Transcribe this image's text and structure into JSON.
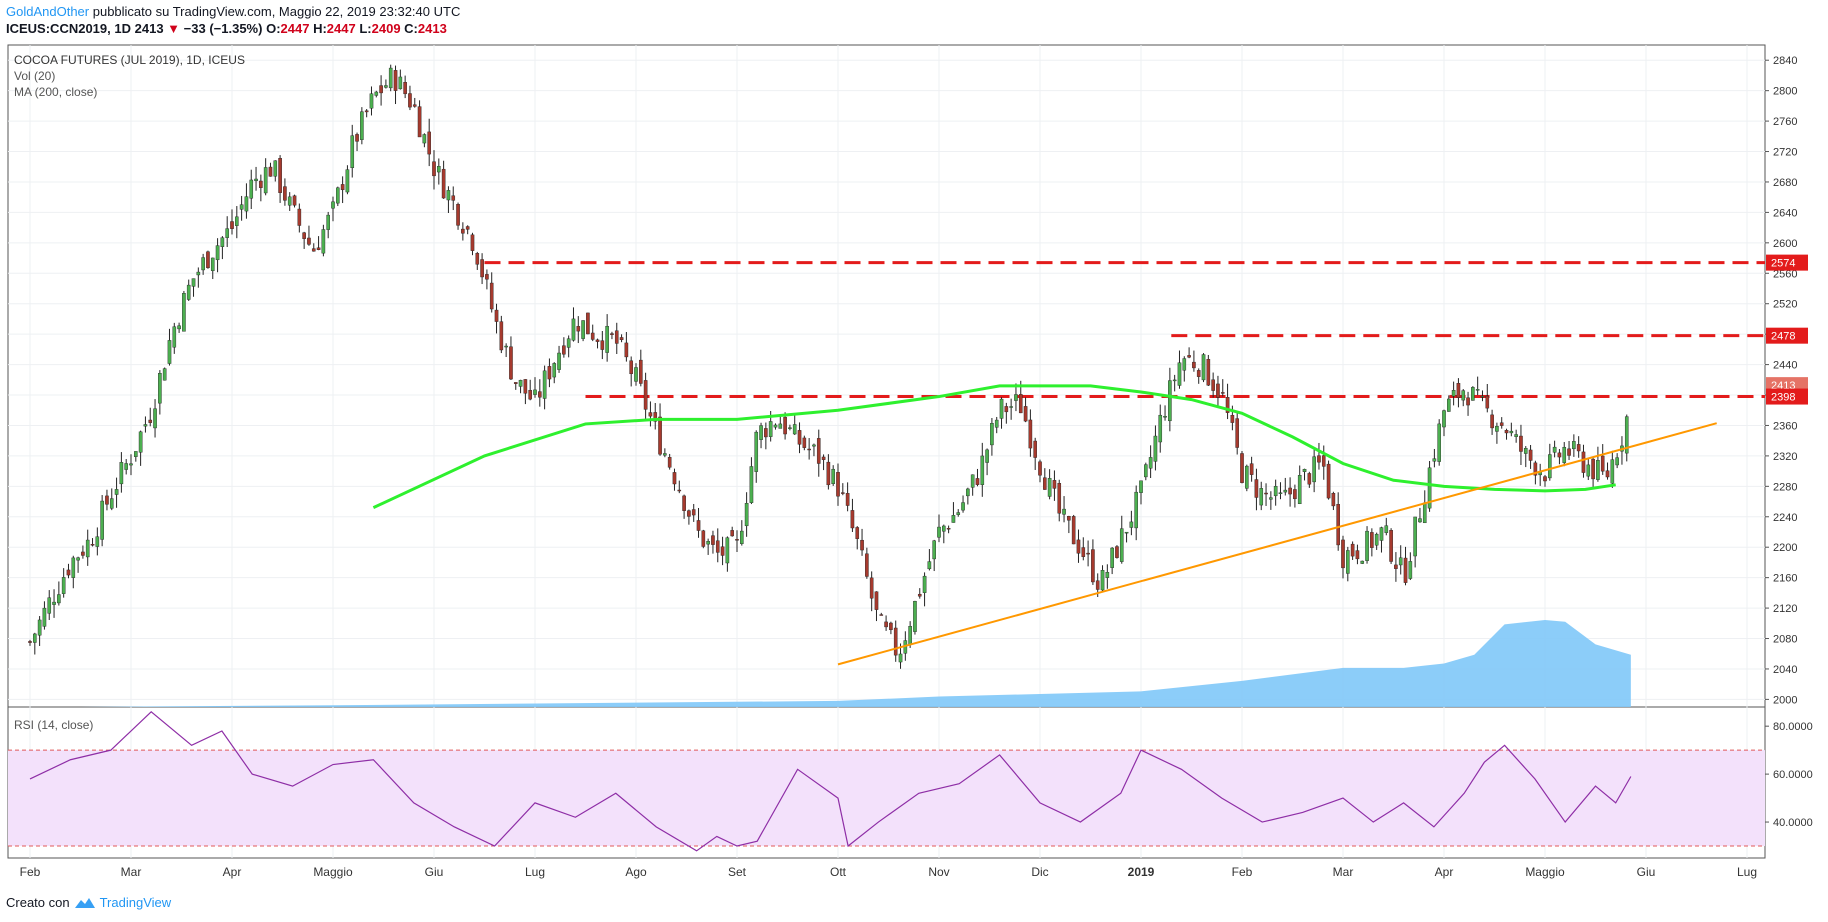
{
  "header": {
    "author": "GoldAndOther",
    "published": "pubblicato su TradingView.com, Maggio 22, 2019 23:32:40 UTC",
    "symbol": "ICEUS:CCN2019, 1D",
    "last": "2413",
    "change": "−33 (−1.35%)",
    "o_label": "O:",
    "o_value": "2447",
    "h_label": "H:",
    "h_value": "2447",
    "l_label": "L:",
    "l_value": "2409",
    "c_label": "C:",
    "c_value": "2413"
  },
  "legend": {
    "title": "COCOA FUTURES (JUL 2019), 1D, ICEUS",
    "vol": "Vol (20)",
    "ma": "MA (200, close)",
    "rsi": "RSI (14, close)"
  },
  "footer": {
    "created": "Creato con",
    "brand": "TradingView"
  },
  "colors": {
    "up": "#4caf50",
    "down": "#a63a2e",
    "ma": "#2ef02e",
    "trend": "#ff9800",
    "resistance": "#e31b1b",
    "volume": "#80c8f8",
    "rsi": "#8e2ea6",
    "rsi_band": "#f3e1fb"
  },
  "chart_data": [
    {
      "type": "line",
      "title": "COCOA FUTURES (JUL 2019), 1D, ICEUS",
      "x_ticks": [
        "Feb",
        "Mar",
        "Apr",
        "Maggio",
        "Giu",
        "Lug",
        "Ago",
        "Set",
        "Ott",
        "Nov",
        "Dic",
        "2019",
        "Feb",
        "Mar",
        "Apr",
        "Maggio",
        "Giu",
        "Lug"
      ],
      "y_ticks": [
        2000,
        2040,
        2080,
        2120,
        2160,
        2200,
        2240,
        2280,
        2320,
        2360,
        2400,
        2440,
        2480,
        2520,
        2560,
        2600,
        2640,
        2680,
        2720,
        2760,
        2800,
        2840
      ],
      "ylim": [
        1990,
        2860
      ],
      "price_labels": [
        "2574",
        "2478",
        "2413",
        "2398"
      ],
      "price_levels": [
        2574,
        2478,
        2413,
        2398
      ],
      "series": [
        {
          "name": "Close",
          "x": [
            0,
            0.2,
            0.4,
            0.6,
            0.8,
            1,
            1.2,
            1.4,
            1.6,
            1.8,
            2,
            2.2,
            2.4,
            2.6,
            2.8,
            3,
            3.2,
            3.4,
            3.6,
            3.8,
            4,
            4.2,
            4.4,
            4.6,
            4.8,
            5,
            5.2,
            5.4,
            5.6,
            5.8,
            6,
            6.2,
            6.4,
            6.6,
            6.8,
            7,
            7.2,
            7.4,
            7.6,
            7.8,
            8,
            8.2,
            8.4,
            8.6,
            8.8,
            9,
            9.2,
            9.4,
            9.6,
            9.8,
            10,
            10.2,
            10.4,
            10.6,
            10.8,
            11,
            11.2,
            11.4,
            11.6,
            11.8,
            12,
            12.2,
            12.4,
            12.6,
            12.8,
            13,
            13.2,
            13.4,
            13.6,
            13.8,
            14,
            14.2,
            14.4,
            14.6,
            14.8,
            15,
            15.2,
            15.4,
            15.6,
            15.8,
            15.85
          ],
          "values": [
            2075,
            2130,
            2180,
            2210,
            2270,
            2320,
            2380,
            2480,
            2550,
            2590,
            2620,
            2680,
            2700,
            2640,
            2590,
            2640,
            2730,
            2790,
            2820,
            2780,
            2700,
            2650,
            2600,
            2500,
            2420,
            2390,
            2450,
            2500,
            2480,
            2470,
            2420,
            2350,
            2290,
            2220,
            2190,
            2200,
            2350,
            2370,
            2340,
            2320,
            2280,
            2200,
            2100,
            2060,
            2140,
            2220,
            2250,
            2300,
            2380,
            2390,
            2310,
            2240,
            2200,
            2150,
            2210,
            2270,
            2370,
            2450,
            2440,
            2400,
            2300,
            2270,
            2260,
            2290,
            2310,
            2190,
            2200,
            2220,
            2160,
            2270,
            2380,
            2410,
            2380,
            2360,
            2320,
            2300,
            2330,
            2310,
            2290,
            2360,
            2413
          ]
        },
        {
          "name": "MA 200",
          "x": [
            3.4,
            4.5,
            5.5,
            6.2,
            7,
            8,
            9,
            9.6,
            10.5,
            11,
            11.5,
            12,
            12.5,
            13,
            13.5,
            14,
            14.5,
            15,
            15.4,
            15.7
          ],
          "values": [
            2252,
            2320,
            2362,
            2368,
            2368,
            2380,
            2398,
            2412,
            2412,
            2404,
            2394,
            2376,
            2345,
            2310,
            2288,
            2280,
            2276,
            2274,
            2276,
            2282
          ]
        }
      ],
      "resistance_lines": [
        {
          "x_start": 4.5,
          "value": 2574
        },
        {
          "x_start": 11.3,
          "value": 2478
        },
        {
          "x_start": 5.5,
          "value": 2398
        }
      ],
      "trendline": {
        "x": [
          8.0,
          16.7
        ],
        "values": [
          2046,
          2363
        ]
      },
      "volume_area": {
        "x": [
          0.5,
          3,
          6,
          8,
          9,
          10,
          11,
          12,
          13,
          13.6,
          14,
          14.3,
          14.6,
          15,
          15.2,
          15.5,
          15.85
        ],
        "values": [
          0.0,
          0.02,
          0.05,
          0.07,
          0.12,
          0.15,
          0.18,
          0.3,
          0.45,
          0.45,
          0.5,
          0.6,
          0.95,
          1.0,
          0.98,
          0.72,
          0.6
        ]
      }
    },
    {
      "type": "line",
      "title": "RSI (14, close)",
      "y_ticks": [
        "80.0000",
        "60.0000",
        "40.0000"
      ],
      "ylim": [
        25,
        88
      ],
      "band": [
        30,
        70
      ],
      "series": [
        {
          "name": "RSI",
          "x": [
            0,
            0.4,
            0.8,
            1.2,
            1.6,
            1.9,
            2.2,
            2.6,
            3,
            3.4,
            3.8,
            4.2,
            4.6,
            5,
            5.4,
            5.8,
            6.2,
            6.6,
            6.8,
            7,
            7.2,
            7.6,
            8,
            8.1,
            8.4,
            8.8,
            9.2,
            9.6,
            10,
            10.4,
            10.8,
            11,
            11.4,
            11.8,
            12.2,
            12.6,
            13,
            13.3,
            13.6,
            13.9,
            14.2,
            14.4,
            14.6,
            14.9,
            15.2,
            15.5,
            15.7,
            15.85
          ],
          "values": [
            58,
            66,
            70,
            86,
            72,
            78,
            60,
            55,
            64,
            66,
            48,
            38,
            30,
            48,
            42,
            52,
            38,
            28,
            34,
            30,
            32,
            62,
            50,
            30,
            40,
            52,
            56,
            68,
            48,
            40,
            52,
            70,
            62,
            50,
            40,
            44,
            50,
            40,
            48,
            38,
            52,
            65,
            72,
            58,
            40,
            55,
            48,
            59
          ]
        }
      ]
    }
  ]
}
